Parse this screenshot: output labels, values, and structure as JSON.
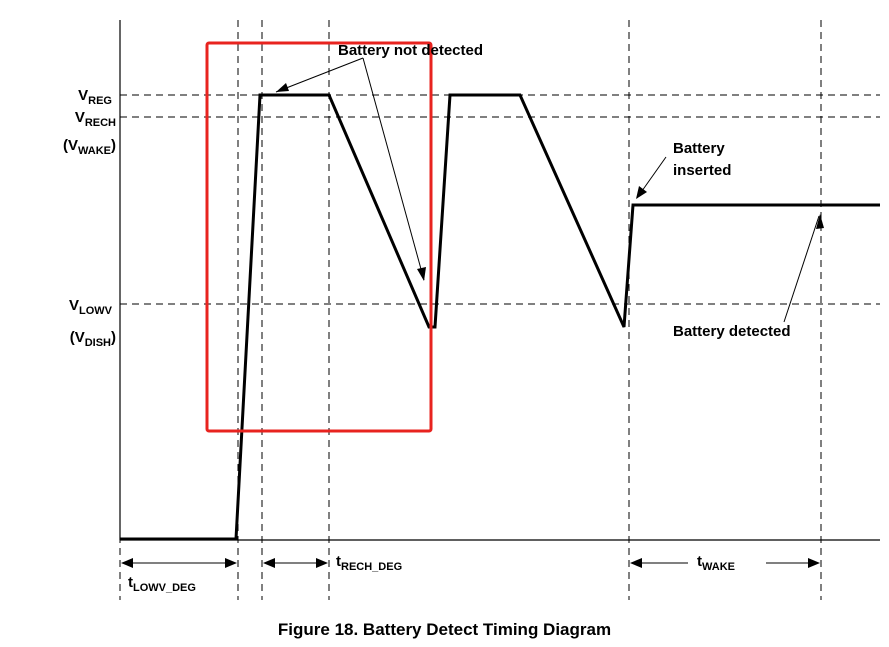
{
  "figure": {
    "caption": "Figure 18.  Battery Detect Timing Diagram"
  },
  "levels": {
    "vreg": {
      "main": "V",
      "sub": "REG"
    },
    "vrech": {
      "main": "V",
      "sub": "RECH"
    },
    "vwake": {
      "open": "(V",
      "sub": "WAKE",
      "close": ")"
    },
    "vlowv": {
      "main": "V",
      "sub": "LOWV"
    },
    "vdish": {
      "open": "(V",
      "sub": "DISH",
      "close": ")"
    }
  },
  "annotations": {
    "battery_not_detected": "Battery not detected",
    "battery_inserted_line1": "Battery",
    "battery_inserted_line2": "inserted",
    "battery_detected": "Battery detected"
  },
  "timings": {
    "tlowv_deg": {
      "main": "t",
      "sub": "LOWV_DEG"
    },
    "trech_deg": {
      "main": "t",
      "sub": "RECH_DEG"
    },
    "twake": {
      "main": "t",
      "sub": "WAKE"
    }
  },
  "colors": {
    "waveform": "#000000",
    "highlight_box": "#e8231f"
  }
}
